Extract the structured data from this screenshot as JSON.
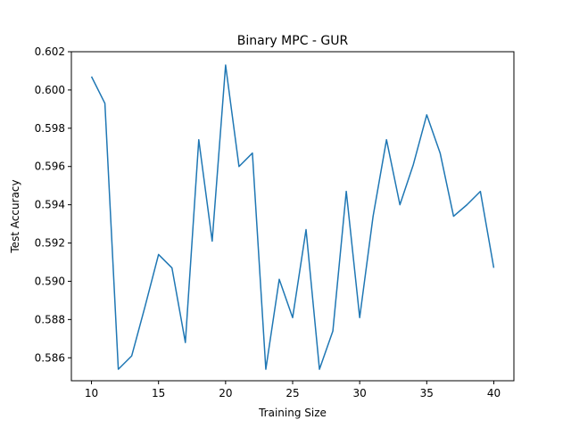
{
  "chart_data": {
    "type": "line",
    "title": "Binary MPC - GUR",
    "xlabel": "Training Size",
    "ylabel": "Test Accuracy",
    "xlim": [
      8.5,
      41.5
    ],
    "ylim": [
      0.5848,
      0.602
    ],
    "xticks": [
      10,
      15,
      20,
      25,
      30,
      35,
      40
    ],
    "yticks": [
      0.586,
      0.588,
      0.59,
      0.592,
      0.594,
      0.596,
      0.598,
      0.6,
      0.602
    ],
    "ytick_labels": [
      "0.586",
      "0.588",
      "0.590",
      "0.592",
      "0.594",
      "0.596",
      "0.598",
      "0.600",
      "0.602"
    ],
    "grid": false,
    "series": [
      {
        "color": "#1f77b4",
        "x": [
          10,
          11,
          12,
          13,
          14,
          15,
          16,
          17,
          18,
          19,
          20,
          21,
          22,
          23,
          24,
          25,
          26,
          27,
          28,
          29,
          30,
          31,
          32,
          33,
          34,
          35,
          36,
          37,
          38,
          39,
          40
        ],
        "y": [
          0.6007,
          0.5993,
          0.5854,
          0.5861,
          0.5887,
          0.5914,
          0.5907,
          0.5868,
          0.5974,
          0.5921,
          0.6013,
          0.596,
          0.5967,
          0.5854,
          0.5901,
          0.5881,
          0.5927,
          0.5854,
          0.5874,
          0.5947,
          0.5881,
          0.5934,
          0.5974,
          0.594,
          0.5961,
          0.5987,
          0.5967,
          0.5934,
          0.594,
          0.5947,
          0.5907
        ]
      }
    ]
  }
}
